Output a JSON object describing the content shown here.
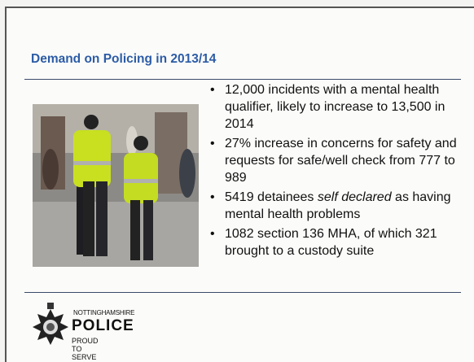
{
  "slide": {
    "title": "Demand on Policing in 2013/14",
    "bullets": [
      {
        "parts": [
          {
            "text": "12,000 incidents with a mental health qualifier, likely to increase to 13,500 in 2014"
          }
        ]
      },
      {
        "parts": [
          {
            "text": "27% increase in concerns for safety and requests for safe/well check from 777 to 989"
          }
        ]
      },
      {
        "parts": [
          {
            "text": "5419 detainees "
          },
          {
            "text": "self declared",
            "italic": true
          },
          {
            "text": " as having mental health problems"
          }
        ]
      },
      {
        "parts": [
          {
            "text": "1082 section 136 MHA, of which 321 brought to a custody suite"
          }
        ]
      }
    ],
    "logo": {
      "county": "NOTTINGHAMSHIRE",
      "name": "POLICE",
      "motto": "PROUD TO SERVE"
    }
  }
}
